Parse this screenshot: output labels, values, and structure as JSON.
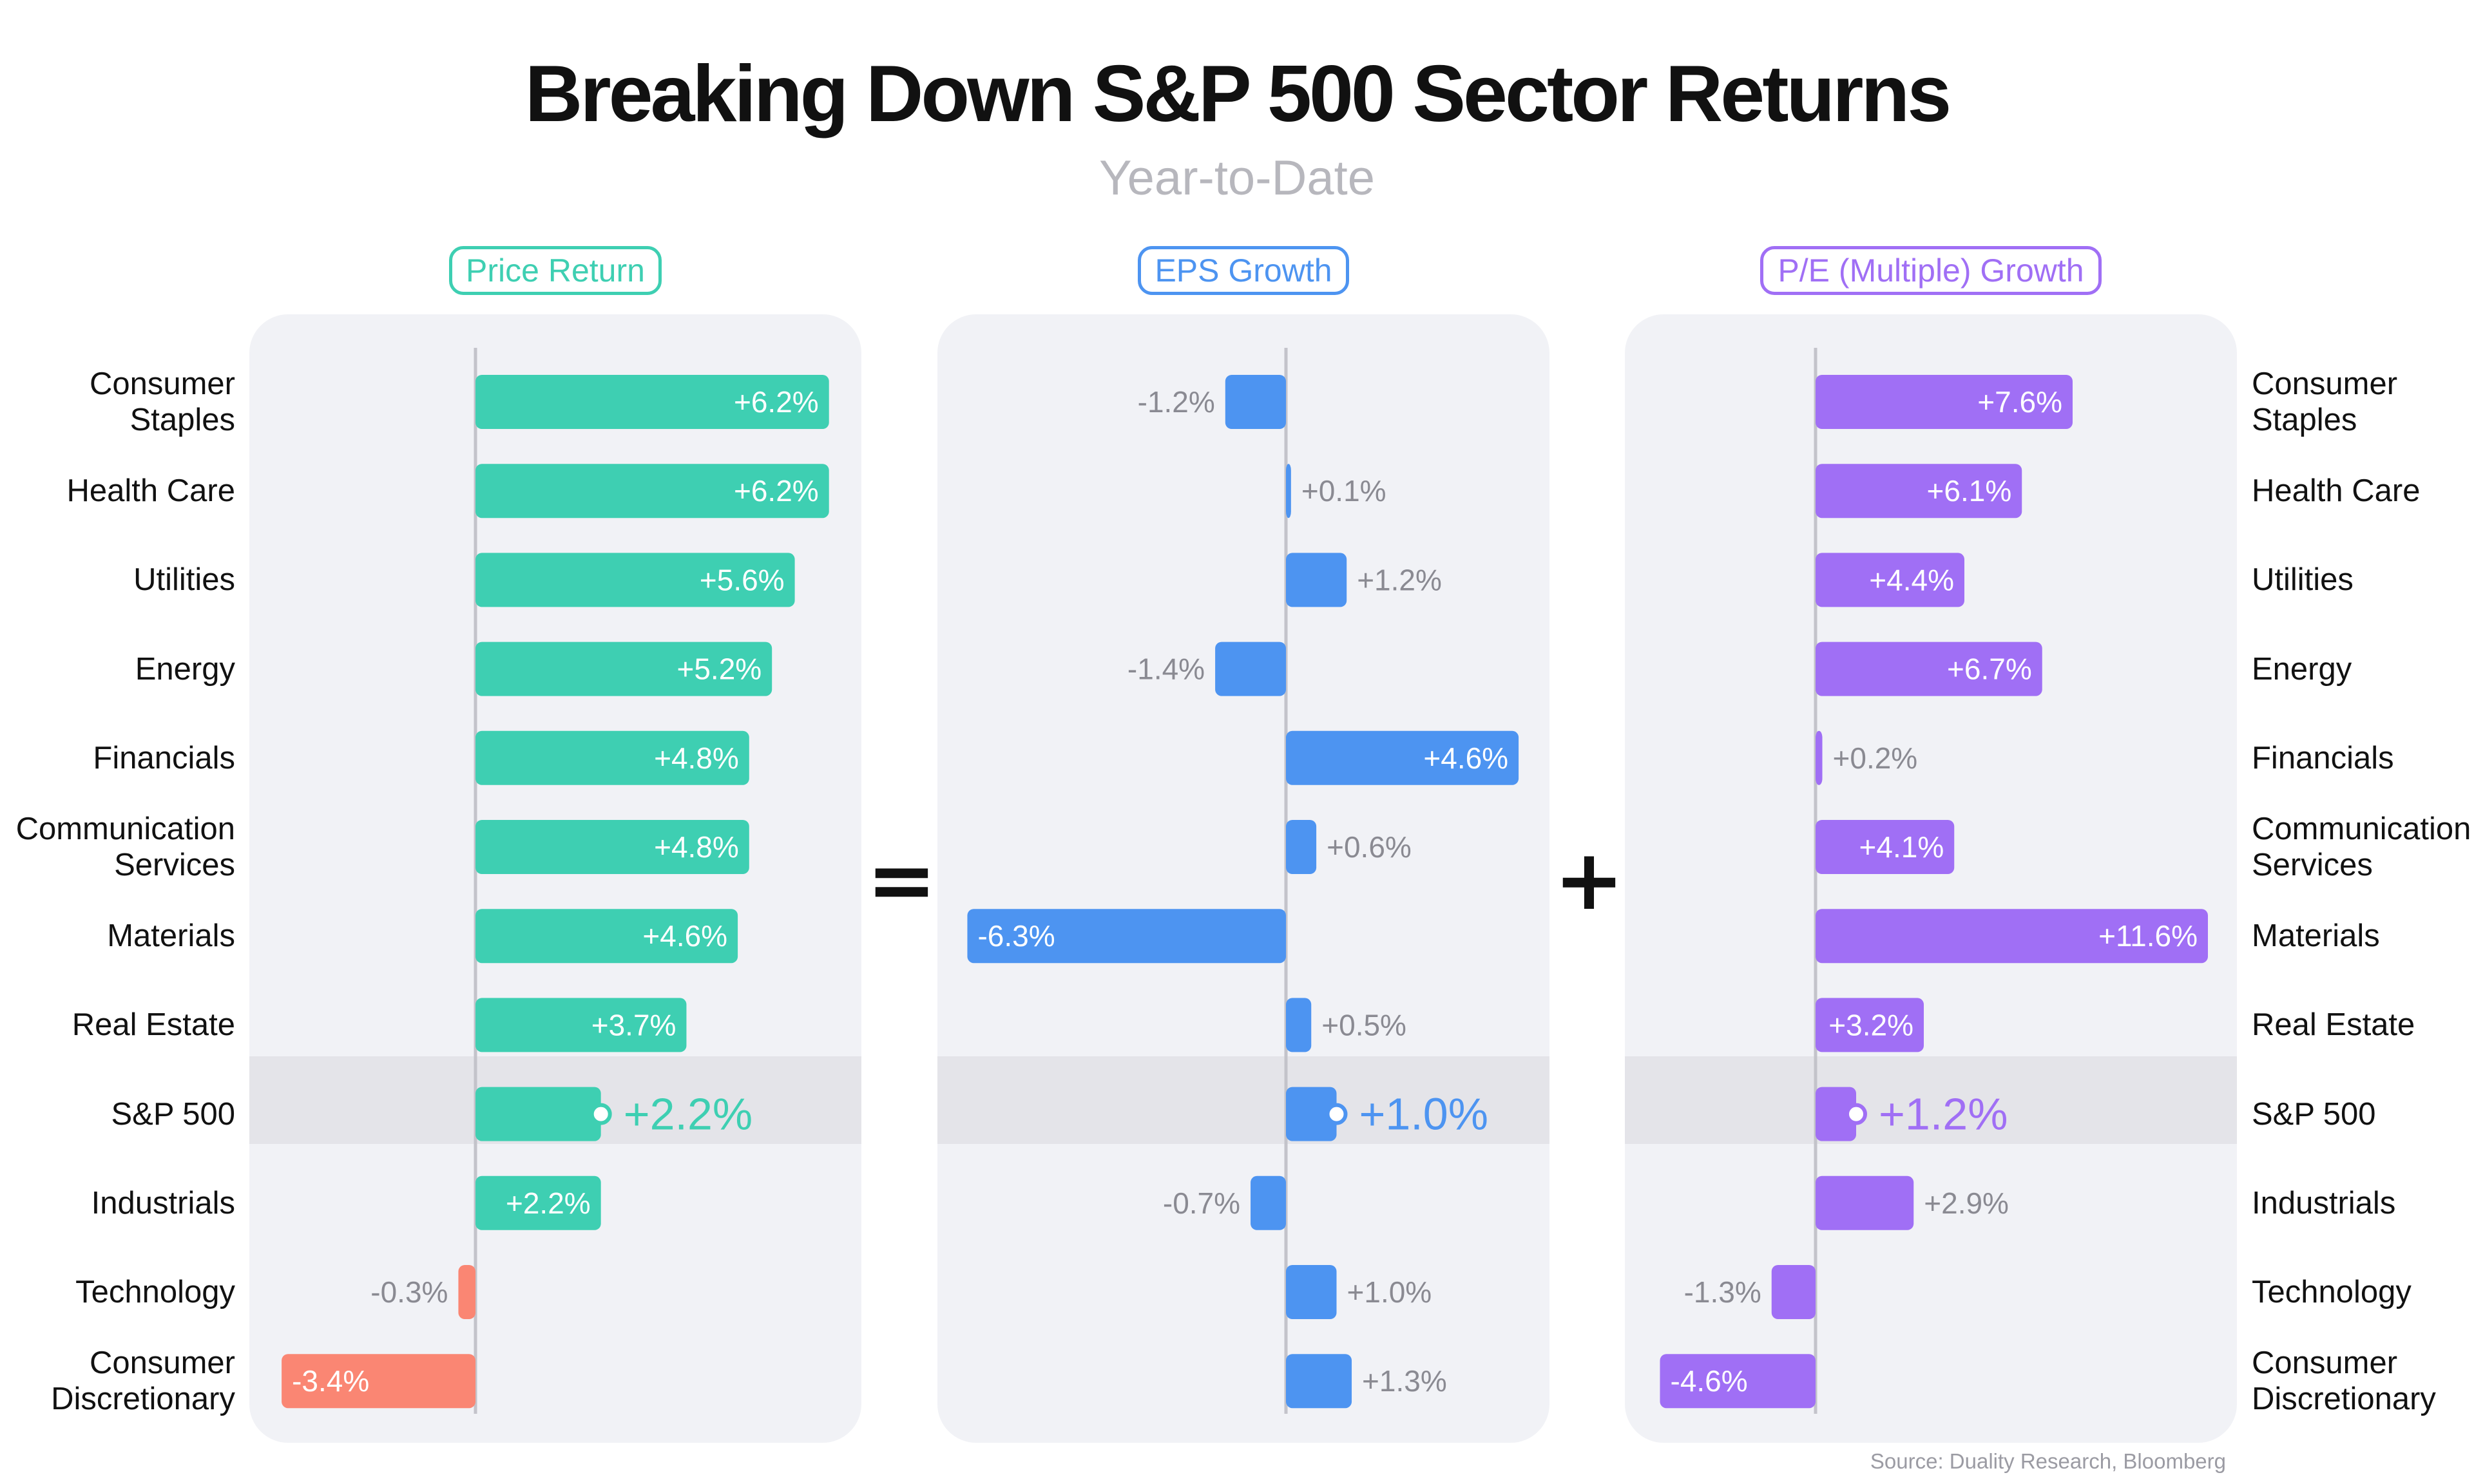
{
  "title": "Breaking Down S&P 500 Sector Returns",
  "subtitle": "Year-to-Date",
  "operators": {
    "equals": "=",
    "plus": "+"
  },
  "source": "Source: Duality Research, Bloomberg",
  "colors": {
    "price_positive": "#3ecfb2",
    "price_negative": "#fa8673",
    "eps": "#4d94f1",
    "pe": "#a06ff5",
    "panel_bg": "#f1f2f6",
    "highlight_band": "#e4e4e9",
    "label_outside": "#8a8a92",
    "label_inside": "#ffffff"
  },
  "chart_data": [
    {
      "type": "bar",
      "orientation": "horizontal",
      "title": "Price Return",
      "categories": [
        "Consumer\nStaples",
        "Health Care",
        "Utilities",
        "Energy",
        "Financials",
        "Communication\nServices",
        "Materials",
        "Real Estate",
        "S&P 500",
        "Industrials",
        "Technology",
        "Consumer\nDiscretionary"
      ],
      "values": [
        6.2,
        6.2,
        5.6,
        5.2,
        4.8,
        4.8,
        4.6,
        3.7,
        2.2,
        2.2,
        -0.3,
        -3.4
      ],
      "labels": [
        "+6.2%",
        "+6.2%",
        "+5.6%",
        "+5.2%",
        "+4.8%",
        "+4.8%",
        "+4.6%",
        "+3.7%",
        "+2.2%",
        "+2.2%",
        "-0.3%",
        "-3.4%"
      ],
      "highlight": "S&P 500",
      "color": "#3ecfb2",
      "negative_color": "#fa8673"
    },
    {
      "type": "bar",
      "orientation": "horizontal",
      "title": "EPS Growth",
      "categories": [
        "Consumer\nStaples",
        "Health Care",
        "Utilities",
        "Energy",
        "Financials",
        "Communication\nServices",
        "Materials",
        "Real Estate",
        "S&P 500",
        "Industrials",
        "Technology",
        "Consumer\nDiscretionary"
      ],
      "values": [
        -1.2,
        0.1,
        1.2,
        -1.4,
        4.6,
        0.6,
        -6.3,
        0.5,
        1.0,
        -0.7,
        1.0,
        1.3
      ],
      "labels": [
        "-1.2%",
        "+0.1%",
        "+1.2%",
        "-1.4%",
        "+4.6%",
        "+0.6%",
        "-6.3%",
        "+0.5%",
        "+1.0%",
        "-0.7%",
        "+1.0%",
        "+1.3%"
      ],
      "highlight": "S&P 500",
      "color": "#4d94f1",
      "negative_color": "#4d94f1"
    },
    {
      "type": "bar",
      "orientation": "horizontal",
      "title": "P/E (Multiple) Growth",
      "categories": [
        "Consumer\nStaples",
        "Health Care",
        "Utilities",
        "Energy",
        "Financials",
        "Communication\nServices",
        "Materials",
        "Real Estate",
        "S&P 500",
        "Industrials",
        "Technology",
        "Consumer\nDiscretionary"
      ],
      "values": [
        7.6,
        6.1,
        4.4,
        6.7,
        0.2,
        4.1,
        11.6,
        3.2,
        1.2,
        2.9,
        -1.3,
        -4.6
      ],
      "labels": [
        "+7.6%",
        "+6.1%",
        "+4.4%",
        "+6.7%",
        "+0.2%",
        "+4.1%",
        "+11.6%",
        "+3.2%",
        "+1.2%",
        "+2.9%",
        "-1.3%",
        "-4.6%"
      ],
      "highlight": "S&P 500",
      "color": "#a06ff5",
      "negative_color": "#a06ff5"
    }
  ]
}
